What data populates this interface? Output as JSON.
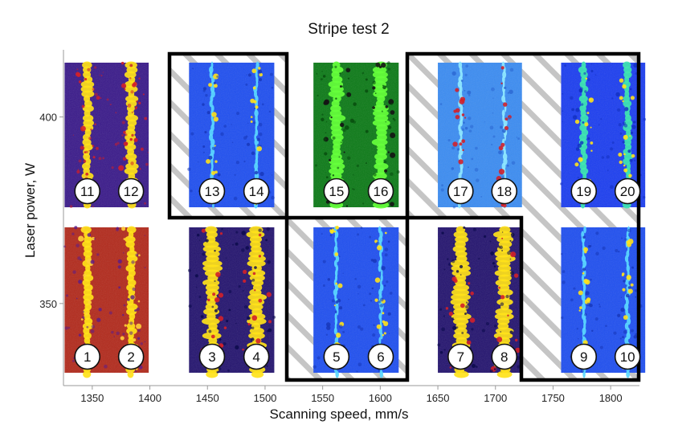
{
  "chart_data": {
    "type": "image-grid",
    "title": "Stripe test 2",
    "xlabel": "Scanning speed, mm/s",
    "ylabel": "Laser power, W",
    "xlim": [
      1325,
      1825
    ],
    "ylim": [
      328,
      418
    ],
    "x_ticks": [
      1350,
      1400,
      1450,
      1500,
      1550,
      1600,
      1650,
      1700,
      1750,
      1800
    ],
    "y_ticks": [
      350,
      400
    ],
    "grid": false,
    "colors": {
      "thermal_background": "#b22a1c",
      "thermal_track": "#ffe21a",
      "plasma_background": "#24146f",
      "blue_background": "#1f4ff0",
      "green_background": "#0c7a17",
      "green_track": "#66ff3c",
      "hatch_fill": "#c5c5c5"
    },
    "panels": [
      {
        "x_start": 1326,
        "x_end": 1399,
        "power": "low",
        "style": "thermal",
        "samples": [
          "1",
          "2"
        ]
      },
      {
        "x_start": 1434,
        "x_end": 1508,
        "power": "low",
        "style": "plasma",
        "samples": [
          "3",
          "4"
        ]
      },
      {
        "x_start": 1542,
        "x_end": 1616,
        "power": "low",
        "style": "blue",
        "samples": [
          "5",
          "6"
        ]
      },
      {
        "x_start": 1650,
        "x_end": 1723,
        "power": "low",
        "style": "plasma",
        "samples": [
          "7",
          "8"
        ]
      },
      {
        "x_start": 1757,
        "x_end": 1830,
        "power": "low",
        "style": "blue",
        "samples": [
          "9",
          "10"
        ]
      },
      {
        "x_start": 1326,
        "x_end": 1399,
        "power": "high",
        "style": "plasma-yellow",
        "samples": [
          "11",
          "12"
        ]
      },
      {
        "x_start": 1434,
        "x_end": 1508,
        "power": "high",
        "style": "blue",
        "samples": [
          "13",
          "14"
        ]
      },
      {
        "x_start": 1542,
        "x_end": 1616,
        "power": "high",
        "style": "green",
        "samples": [
          "15",
          "16"
        ]
      },
      {
        "x_start": 1650,
        "x_end": 1723,
        "power": "high",
        "style": "light-blue",
        "samples": [
          "17",
          "18"
        ]
      },
      {
        "x_start": 1757,
        "x_end": 1830,
        "power": "high",
        "style": "blue-green",
        "samples": [
          "19",
          "20"
        ]
      }
    ]
  }
}
